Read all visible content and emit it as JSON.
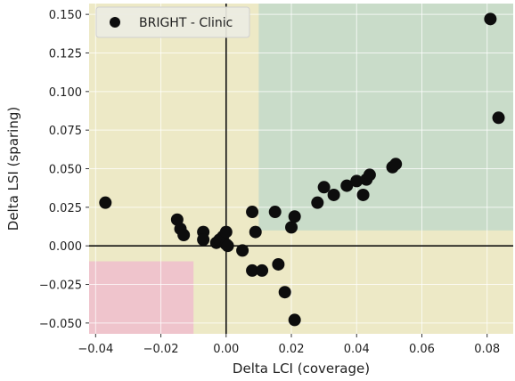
{
  "chart_data": {
    "type": "scatter",
    "xlabel": "Delta LCI (coverage)",
    "ylabel": "Delta LSI (sparing)",
    "xlim": [
      -0.042,
      0.088
    ],
    "ylim": [
      -0.057,
      0.157
    ],
    "x_ticks": [
      -0.04,
      -0.02,
      0.0,
      0.02,
      0.04,
      0.06,
      0.08
    ],
    "x_tick_labels": [
      "−0.04",
      "−0.02",
      "0.00",
      "0.02",
      "0.04",
      "0.06",
      "0.08"
    ],
    "y_ticks": [
      -0.05,
      -0.025,
      0.0,
      0.025,
      0.05,
      0.075,
      0.1,
      0.125,
      0.15
    ],
    "y_tick_labels": [
      "−0.050",
      "−0.025",
      "0.000",
      "0.025",
      "0.050",
      "0.075",
      "0.100",
      "0.125",
      "0.150"
    ],
    "grid": true,
    "legend_position": "top-left",
    "colors": {
      "background": "#ede9c6",
      "green_region": "#c9dcc9",
      "pink_region": "#efc4cc",
      "points": "#0d0d0d",
      "grid": "#ffffff",
      "axes_lines": "#111111"
    },
    "regions": [
      {
        "name": "green",
        "x": [
          0.01,
          0.088
        ],
        "y": [
          0.01,
          0.157
        ]
      },
      {
        "name": "pink",
        "x": [
          -0.042,
          -0.01
        ],
        "y": [
          -0.057,
          -0.01
        ]
      }
    ],
    "reference_lines": {
      "x": 0,
      "y": 0
    },
    "series": [
      {
        "name": "BRIGHT - Clinic",
        "points": [
          {
            "x": 0.081,
            "y": 0.147
          },
          {
            "x": 0.0835,
            "y": 0.083
          },
          {
            "x": -0.037,
            "y": 0.028
          },
          {
            "x": -0.015,
            "y": 0.017
          },
          {
            "x": -0.014,
            "y": 0.011
          },
          {
            "x": -0.013,
            "y": 0.007
          },
          {
            "x": -0.007,
            "y": 0.009
          },
          {
            "x": -0.007,
            "y": 0.004
          },
          {
            "x": -0.003,
            "y": 0.002
          },
          {
            "x": -0.002,
            "y": 0.004
          },
          {
            "x": -0.001,
            "y": 0.006
          },
          {
            "x": 0.0,
            "y": 0.009
          },
          {
            "x": 0.0,
            "y": 0.001
          },
          {
            "x": 0.0005,
            "y": 0.0
          },
          {
            "x": 0.005,
            "y": -0.003
          },
          {
            "x": 0.008,
            "y": 0.022
          },
          {
            "x": 0.009,
            "y": 0.009
          },
          {
            "x": 0.008,
            "y": -0.016
          },
          {
            "x": 0.011,
            "y": -0.016
          },
          {
            "x": 0.015,
            "y": 0.022
          },
          {
            "x": 0.016,
            "y": -0.012
          },
          {
            "x": 0.018,
            "y": -0.03
          },
          {
            "x": 0.02,
            "y": 0.012
          },
          {
            "x": 0.021,
            "y": 0.019
          },
          {
            "x": 0.021,
            "y": -0.048
          },
          {
            "x": 0.028,
            "y": 0.028
          },
          {
            "x": 0.03,
            "y": 0.038
          },
          {
            "x": 0.033,
            "y": 0.033
          },
          {
            "x": 0.037,
            "y": 0.039
          },
          {
            "x": 0.04,
            "y": 0.042
          },
          {
            "x": 0.042,
            "y": 0.033
          },
          {
            "x": 0.043,
            "y": 0.043
          },
          {
            "x": 0.044,
            "y": 0.046
          },
          {
            "x": 0.051,
            "y": 0.051
          },
          {
            "x": 0.052,
            "y": 0.053
          }
        ]
      }
    ]
  }
}
